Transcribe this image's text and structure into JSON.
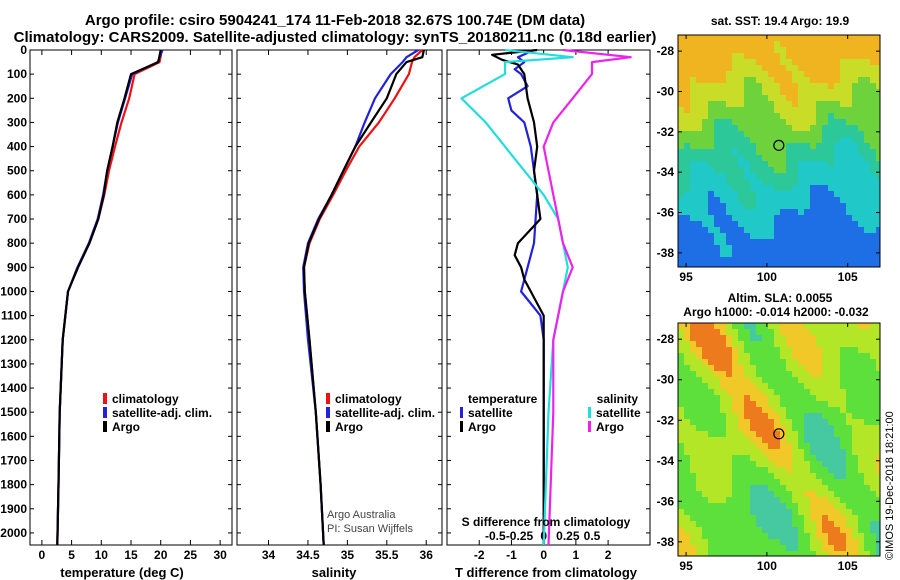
{
  "titles": {
    "line1": "Argo profile: csiro 5904241_174 11-Feb-2018 32.67S 100.74E (DM data)",
    "line2": "Climatology: CARS2009. Satellite-adjusted climatology: synTS_20180211.nc (0.18d earlier)"
  },
  "depth_ticks": [
    "0",
    "100",
    "200",
    "300",
    "400",
    "500",
    "600",
    "700",
    "800",
    "900",
    "1000",
    "1100",
    "1200",
    "1300",
    "1400",
    "1500",
    "1600",
    "1700",
    "1800",
    "1900",
    "2000"
  ],
  "colors": {
    "climatology": "#ee1111",
    "satellite": "#2222dd",
    "argo": "#000000",
    "cyan": "#22dddd",
    "magenta": "#ee22ee"
  },
  "chart_data": [
    {
      "type": "line",
      "title": "",
      "xlabel": "temperature (deg C)",
      "ylabel": "depth",
      "xlim": [
        -2,
        32
      ],
      "ylim": [
        0,
        2050
      ],
      "xticks": [
        "0",
        "5",
        "10",
        "15",
        "20",
        "25",
        "30"
      ],
      "xtick_values": [
        0,
        5,
        10,
        15,
        20,
        25,
        30
      ],
      "legend": [
        "climatology",
        "satellite-adj. clim.",
        "Argo"
      ],
      "series": [
        {
          "name": "climatology",
          "depth": [
            0,
            50,
            100,
            200,
            300,
            400,
            500,
            600,
            700,
            800,
            900,
            1000,
            1200,
            1500,
            1800,
            2050
          ],
          "values": [
            20.2,
            19.8,
            15.6,
            14.7,
            13.4,
            12.3,
            11.3,
            10.5,
            9.5,
            8.0,
            6.0,
            4.4,
            3.5,
            3.0,
            2.8,
            2.6
          ]
        },
        {
          "name": "satellite-adj. clim.",
          "depth": [
            0,
            50,
            100,
            200,
            300,
            400,
            500,
            600,
            700,
            800,
            900,
            1000,
            1200,
            1500,
            1800,
            2050
          ],
          "values": [
            20.3,
            19.5,
            15.2,
            14.0,
            12.8,
            11.9,
            11.0,
            10.3,
            9.4,
            7.9,
            6.0,
            4.4,
            3.5,
            3.0,
            2.8,
            2.6
          ]
        },
        {
          "name": "Argo",
          "depth": [
            0,
            50,
            100,
            200,
            300,
            400,
            500,
            600,
            700,
            800,
            900,
            1000,
            1200,
            1500,
            1800,
            2050
          ],
          "values": [
            20.0,
            19.6,
            15.0,
            13.9,
            12.7,
            11.9,
            11.0,
            10.4,
            9.5,
            8.0,
            6.1,
            4.4,
            3.5,
            3.0,
            2.8,
            2.6
          ]
        }
      ]
    },
    {
      "type": "line",
      "title": "",
      "xlabel": "salinity",
      "ylabel": "depth",
      "xlim": [
        33.6,
        36.2
      ],
      "ylim": [
        0,
        2050
      ],
      "xticks": [
        "34",
        "34.5",
        "35",
        "35.5",
        "36"
      ],
      "xtick_values": [
        34,
        34.5,
        35,
        35.5,
        36
      ],
      "legend": [
        "climatology",
        "satellite-adj. clim.",
        "Argo"
      ],
      "annotations": [
        "Argo Australia",
        "PI: Susan Wijffels"
      ],
      "series": [
        {
          "name": "climatology",
          "depth": [
            0,
            30,
            50,
            100,
            200,
            300,
            400,
            500,
            600,
            700,
            800,
            900,
            1000,
            1200,
            1500,
            1800,
            2050
          ],
          "values": [
            35.95,
            35.85,
            35.82,
            35.78,
            35.6,
            35.4,
            35.15,
            34.98,
            34.82,
            34.65,
            34.52,
            34.45,
            34.46,
            34.52,
            34.6,
            34.66,
            34.7
          ]
        },
        {
          "name": "satellite-adj. clim.",
          "depth": [
            0,
            30,
            50,
            100,
            200,
            300,
            400,
            500,
            600,
            700,
            800,
            900,
            1000,
            1200,
            1500,
            1800,
            2050
          ],
          "values": [
            35.9,
            35.75,
            35.7,
            35.55,
            35.35,
            35.22,
            35.1,
            34.95,
            34.8,
            34.63,
            34.5,
            34.44,
            34.45,
            34.5,
            34.6,
            34.66,
            34.7
          ]
        },
        {
          "name": "Argo",
          "depth": [
            0,
            30,
            50,
            100,
            200,
            300,
            400,
            500,
            600,
            700,
            800,
            900,
            1000,
            1200,
            1500,
            1800,
            2050
          ],
          "values": [
            35.97,
            35.95,
            35.75,
            35.62,
            35.5,
            35.3,
            35.1,
            34.95,
            34.8,
            34.64,
            34.51,
            34.45,
            34.46,
            34.52,
            34.6,
            34.66,
            34.7
          ]
        }
      ]
    },
    {
      "type": "line",
      "title": "",
      "xlabel": "T difference from climatology",
      "top_xlabel": "S difference from climatology",
      "ylabel": "depth",
      "xlim": [
        -3,
        3.3
      ],
      "ylim": [
        0,
        2050
      ],
      "xticks": [
        "-2",
        "-1",
        "0",
        "1",
        "2"
      ],
      "xtick_values": [
        -2,
        -1,
        0,
        1,
        2
      ],
      "sticks": [
        "-0.5",
        "-0.25",
        "0",
        "0.25",
        "0.5"
      ],
      "stick_values": [
        -0.5,
        -0.25,
        0,
        0.25,
        0.5
      ],
      "legend_temperature_title": "temperature",
      "legend_salinity_title": "salinity",
      "legend_temperature": [
        "satellite",
        "Argo"
      ],
      "legend_salinity": [
        "satellite",
        "Argo"
      ],
      "series": [
        {
          "name": "temperature satellite",
          "color": "blue",
          "depth": [
            0,
            30,
            50,
            80,
            100,
            150,
            200,
            250,
            300,
            400,
            600,
            800,
            900,
            1000,
            1050,
            1100,
            1200,
            1500,
            2050
          ],
          "values": [
            -0.3,
            -0.8,
            -0.6,
            -0.9,
            -0.7,
            -0.5,
            -1.1,
            -1.0,
            -0.6,
            -0.4,
            -0.2,
            -0.3,
            -0.5,
            -0.7,
            -0.4,
            -0.1,
            0.0,
            0.0,
            0.0
          ]
        },
        {
          "name": "temperature Argo",
          "color": "black",
          "depth": [
            0,
            20,
            40,
            60,
            100,
            200,
            300,
            400,
            500,
            600,
            700,
            800,
            850,
            900,
            950,
            1000,
            1050,
            1100,
            1200,
            1500,
            2050
          ],
          "values": [
            -0.2,
            -1.6,
            -1.3,
            -0.8,
            -0.6,
            -0.5,
            -0.3,
            -0.2,
            -0.3,
            -0.2,
            -0.1,
            -0.8,
            -0.9,
            -0.7,
            -0.6,
            -0.4,
            -0.2,
            0.0,
            0.0,
            0.0,
            0.0
          ]
        },
        {
          "name": "salinity satellite",
          "color": "cyan",
          "depth": [
            0,
            30,
            50,
            100,
            200,
            300,
            400,
            500,
            600,
            700,
            800,
            900,
            1000,
            1200,
            1500,
            2050
          ],
          "values": [
            -0.4,
            0.3,
            -0.4,
            -0.4,
            -0.85,
            -0.6,
            -0.4,
            -0.2,
            0.0,
            0.15,
            0.2,
            0.25,
            0.2,
            0.1,
            0.05,
            0.0
          ]
        },
        {
          "name": "salinity Argo",
          "color": "magenta",
          "depth": [
            0,
            30,
            50,
            100,
            200,
            300,
            400,
            500,
            600,
            700,
            800,
            900,
            1000,
            1200,
            1500,
            2050
          ],
          "values": [
            0.2,
            0.9,
            0.5,
            0.5,
            0.3,
            0.1,
            0.0,
            0.05,
            0.1,
            0.15,
            0.2,
            0.3,
            0.2,
            0.1,
            0.1,
            0.05
          ]
        }
      ]
    },
    {
      "type": "heatmap",
      "title": "sat. SST: 19.4 Argo: 19.9",
      "xticks": [
        "95",
        "100",
        "105"
      ],
      "xtick_values": [
        95,
        100,
        105
      ],
      "yticks": [
        "-28",
        "-30",
        "-32",
        "-34",
        "-36",
        "-38"
      ],
      "ytick_values": [
        -28,
        -30,
        -32,
        -34,
        -36,
        -38
      ],
      "xlim": [
        94.5,
        107
      ],
      "ylim": [
        -38.7,
        -27.2
      ],
      "marker": {
        "lon": 100.74,
        "lat": -32.67
      }
    },
    {
      "type": "heatmap",
      "title": "Altim. SLA: 0.0055",
      "subtitle": "Argo h1000: -0.014 h2000: -0.032",
      "xticks": [
        "95",
        "100",
        "105"
      ],
      "xtick_values": [
        95,
        100,
        105
      ],
      "yticks": [
        "-28",
        "-30",
        "-32",
        "-34",
        "-36",
        "-38"
      ],
      "ytick_values": [
        -28,
        -30,
        -32,
        -34,
        -36,
        -38
      ],
      "xlim": [
        94.5,
        107
      ],
      "ylim": [
        -38.7,
        -27.2
      ],
      "marker": {
        "lon": 100.74,
        "lat": -32.67
      }
    }
  ],
  "side_label": "©IMOS 19-Dec-2018 18:21:00"
}
